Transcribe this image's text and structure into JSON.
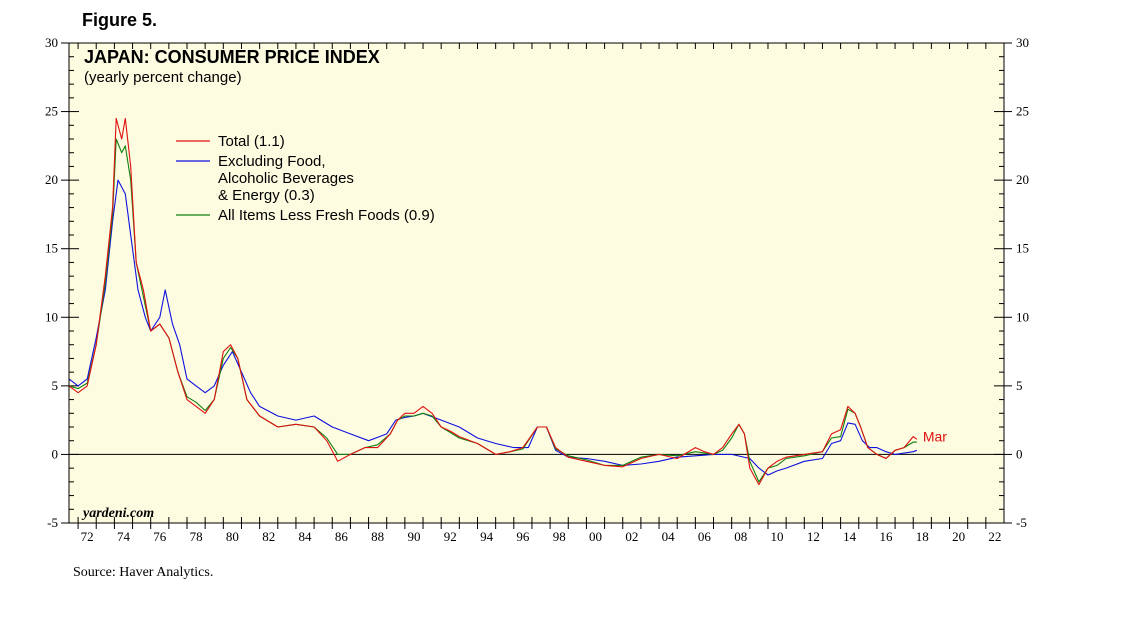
{
  "figure_label": "Figure 5.",
  "source": "Source: Haver Analytics.",
  "colors": {
    "plot_bg": "#fdfce0",
    "total": "#e01010",
    "core": "#1010e0",
    "less_fresh": "#108010",
    "frame": "#000000"
  },
  "chart_data": {
    "type": "line",
    "title": "JAPAN: CONSUMER PRICE INDEX",
    "subtitle": "(yearly percent change)",
    "watermark": "yardeni.com",
    "end_label": "Mar",
    "xlim": [
      1971.5,
      2023.0
    ],
    "ylim": [
      -5,
      30
    ],
    "y_ticks": [
      -5,
      0,
      5,
      10,
      15,
      20,
      25,
      30
    ],
    "y_tick_labels": [
      "-5",
      "0",
      "5",
      "10",
      "15",
      "20",
      "25",
      "30"
    ],
    "x_tick_labels": [
      "72",
      "74",
      "76",
      "78",
      "80",
      "82",
      "84",
      "86",
      "88",
      "90",
      "92",
      "94",
      "96",
      "98",
      "00",
      "02",
      "04",
      "06",
      "08",
      "10",
      "12",
      "14",
      "16",
      "18",
      "20",
      "22"
    ],
    "x_tick_years": [
      1972,
      1974,
      1976,
      1978,
      1980,
      1982,
      1984,
      1986,
      1988,
      1990,
      1992,
      1994,
      1996,
      1998,
      2000,
      2002,
      2004,
      2006,
      2008,
      2010,
      2012,
      2014,
      2016,
      2018,
      2020,
      2022
    ],
    "series": [
      {
        "name": "Total (1.1)",
        "legend_lines": [
          "Total (1.1)"
        ],
        "color": "#e01010",
        "x": [
          1971.5,
          1972.0,
          1972.5,
          1973.0,
          1973.5,
          1973.9,
          1974.1,
          1974.4,
          1974.6,
          1974.9,
          1975.2,
          1975.6,
          1976.0,
          1976.5,
          1977.0,
          1977.5,
          1978.0,
          1978.5,
          1979.0,
          1979.5,
          1980.0,
          1980.4,
          1980.8,
          1981.3,
          1982.0,
          1983.0,
          1984.0,
          1985.0,
          1985.7,
          1986.3,
          1987.0,
          1987.8,
          1988.5,
          1989.2,
          1989.6,
          1990.0,
          1990.5,
          1991.0,
          1991.5,
          1992.0,
          1992.5,
          1993.0,
          1994.0,
          1995.0,
          1995.8,
          1996.5,
          1997.3,
          1997.8,
          1998.3,
          1999.0,
          2000.0,
          2001.0,
          2002.0,
          2003.0,
          2004.0,
          2005.0,
          2006.0,
          2006.5,
          2007.0,
          2007.5,
          2008.0,
          2008.4,
          2008.7,
          2009.0,
          2009.5,
          2010.0,
          2010.5,
          2011.0,
          2012.0,
          2013.0,
          2013.5,
          2014.0,
          2014.4,
          2014.8,
          2015.1,
          2015.5,
          2016.0,
          2016.5,
          2017.0,
          2017.5,
          2018.0,
          2018.2
        ],
        "y": [
          5.0,
          4.5,
          5.0,
          8.0,
          13.0,
          18.0,
          24.5,
          23.0,
          24.5,
          21.0,
          14.0,
          12.0,
          9.0,
          9.5,
          8.5,
          6.0,
          4.0,
          3.5,
          3.0,
          4.0,
          7.5,
          8.0,
          7.0,
          4.0,
          2.8,
          2.0,
          2.2,
          2.0,
          1.0,
          -0.5,
          0.0,
          0.5,
          0.5,
          1.5,
          2.5,
          3.0,
          3.0,
          3.5,
          3.0,
          2.0,
          1.7,
          1.3,
          0.8,
          0.0,
          0.2,
          0.5,
          2.0,
          2.0,
          0.5,
          -0.2,
          -0.5,
          -0.8,
          -0.9,
          -0.3,
          0.0,
          -0.3,
          0.5,
          0.2,
          0.0,
          0.5,
          1.5,
          2.2,
          1.5,
          -1.0,
          -2.2,
          -1.0,
          -0.5,
          -0.2,
          0.0,
          0.2,
          1.5,
          1.8,
          3.5,
          3.0,
          2.0,
          0.5,
          0.0,
          -0.3,
          0.3,
          0.5,
          1.3,
          1.1
        ]
      },
      {
        "name": "Excluding Food, Alcoholic Beverages & Energy (0.3)",
        "legend_lines": [
          "Excluding Food,",
          "Alcoholic Beverages",
          "& Energy (0.3)"
        ],
        "color": "#1010e0",
        "x": [
          1971.5,
          1972.0,
          1972.5,
          1973.0,
          1973.5,
          1973.9,
          1974.2,
          1974.6,
          1974.9,
          1975.3,
          1975.7,
          1976.0,
          1976.5,
          1976.8,
          1977.2,
          1977.6,
          1978.0,
          1978.5,
          1979.0,
          1979.5,
          1980.0,
          1980.5,
          1981.0,
          1981.5,
          1982.0,
          1983.0,
          1984.0,
          1985.0,
          1986.0,
          1987.0,
          1988.0,
          1989.0,
          1989.5,
          1990.0,
          1990.5,
          1991.0,
          1992.0,
          1993.0,
          1994.0,
          1995.0,
          1996.0,
          1996.8,
          1997.3,
          1997.8,
          1998.3,
          1999.0,
          2000.0,
          2001.0,
          2002.0,
          2003.0,
          2004.0,
          2005.0,
          2006.0,
          2007.0,
          2008.0,
          2009.0,
          2009.5,
          2010.0,
          2010.5,
          2011.0,
          2012.0,
          2013.0,
          2013.5,
          2014.0,
          2014.4,
          2014.8,
          2015.2,
          2015.6,
          2016.0,
          2016.5,
          2017.0,
          2017.5,
          2018.0,
          2018.2
        ],
        "y": [
          5.5,
          5.0,
          5.5,
          8.5,
          12.0,
          17.0,
          20.0,
          19.0,
          16.0,
          12.0,
          10.0,
          9.0,
          10.0,
          12.0,
          9.5,
          8.0,
          5.5,
          5.0,
          4.5,
          5.0,
          6.5,
          7.5,
          6.0,
          4.5,
          3.5,
          2.8,
          2.5,
          2.8,
          2.0,
          1.5,
          1.0,
          1.5,
          2.5,
          2.7,
          2.8,
          3.0,
          2.5,
          2.0,
          1.2,
          0.8,
          0.5,
          0.5,
          2.0,
          2.0,
          0.3,
          -0.2,
          -0.3,
          -0.5,
          -0.8,
          -0.7,
          -0.5,
          -0.2,
          -0.1,
          0.0,
          0.0,
          -0.3,
          -1.0,
          -1.5,
          -1.2,
          -1.0,
          -0.5,
          -0.3,
          0.8,
          1.0,
          2.3,
          2.2,
          1.0,
          0.5,
          0.5,
          0.2,
          0.0,
          0.1,
          0.2,
          0.3
        ]
      },
      {
        "name": "All Items Less Fresh Foods (0.9)",
        "legend_lines": [
          "All Items Less Fresh Foods (0.9)"
        ],
        "color": "#108010",
        "x": [
          1971.5,
          1972.0,
          1972.5,
          1973.0,
          1973.5,
          1973.9,
          1974.1,
          1974.4,
          1974.6,
          1974.9,
          1975.2,
          1975.6,
          1976.0,
          1976.5,
          1977.0,
          1977.5,
          1978.0,
          1978.5,
          1979.0,
          1979.5,
          1980.0,
          1980.4,
          1980.8,
          1981.3,
          1982.0,
          1983.0,
          1984.0,
          1985.0,
          1985.7,
          1986.3,
          1987.0,
          1987.8,
          1988.5,
          1989.2,
          1989.6,
          1990.0,
          1990.5,
          1991.0,
          1991.5,
          1992.0,
          1992.5,
          1993.0,
          1994.0,
          1995.0,
          1995.8,
          1996.5,
          1997.3,
          1997.8,
          1998.3,
          1999.0,
          2000.0,
          2001.0,
          2002.0,
          2003.0,
          2004.0,
          2005.0,
          2006.0,
          2006.5,
          2007.0,
          2007.5,
          2008.0,
          2008.4,
          2008.7,
          2009.0,
          2009.5,
          2010.0,
          2010.5,
          2011.0,
          2012.0,
          2013.0,
          2013.5,
          2014.0,
          2014.4,
          2014.8,
          2015.1,
          2015.5,
          2016.0,
          2016.5,
          2017.0,
          2017.5,
          2018.0,
          2018.2
        ],
        "y": [
          5.0,
          4.8,
          5.2,
          8.0,
          12.5,
          17.5,
          23.0,
          22.0,
          22.5,
          20.0,
          14.0,
          11.5,
          9.0,
          9.5,
          8.5,
          6.0,
          4.2,
          3.8,
          3.2,
          4.0,
          7.0,
          7.8,
          7.0,
          4.0,
          2.8,
          2.0,
          2.2,
          2.0,
          1.2,
          0.0,
          0.0,
          0.5,
          0.7,
          1.5,
          2.5,
          2.8,
          2.8,
          3.0,
          2.8,
          2.0,
          1.6,
          1.2,
          0.8,
          0.0,
          0.2,
          0.4,
          2.0,
          2.0,
          0.4,
          -0.1,
          -0.4,
          -0.8,
          -0.8,
          -0.2,
          0.0,
          -0.1,
          0.2,
          0.1,
          0.0,
          0.3,
          1.2,
          2.2,
          1.5,
          -0.5,
          -2.0,
          -1.0,
          -0.8,
          -0.3,
          -0.1,
          0.2,
          1.2,
          1.3,
          3.3,
          3.0,
          2.0,
          0.5,
          0.0,
          -0.3,
          0.3,
          0.5,
          0.9,
          0.9
        ]
      }
    ]
  }
}
